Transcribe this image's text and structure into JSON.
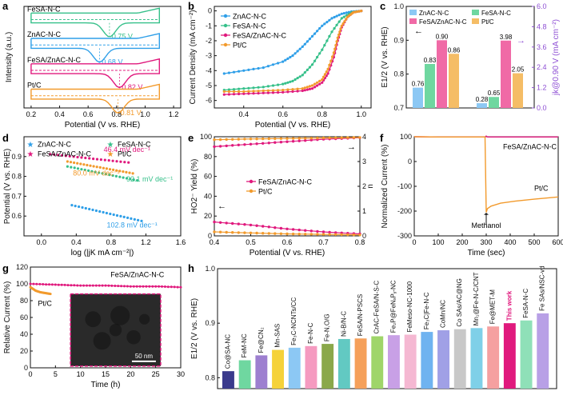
{
  "colors": {
    "fesa": "#36c08a",
    "znac": "#2f9fe8",
    "combo": "#e0197d",
    "ptc": "#f29a2c",
    "purple": "#8e4fd4",
    "axis": "#111111",
    "tem_frame": "#e0197d"
  },
  "chart_data": [
    {
      "id": "a",
      "type": "line",
      "panel_letter": "a",
      "xlabel": "Potential (V vs. RHE)",
      "ylabel": "Intensity (a.u.)",
      "xlim": [
        0.15,
        1.25
      ],
      "xticks": [
        "0.2",
        "0.4",
        "0.6",
        "0.8",
        "1.0",
        "1.2"
      ],
      "xtick_values": [
        0.2,
        0.4,
        0.6,
        0.8,
        1.0,
        1.2
      ],
      "curves": [
        {
          "name": "Fe_SA-N-C",
          "label": "FeSA-N-C",
          "color": "fesa",
          "peak_label": "0.75 V",
          "peak": 0.75,
          "offset": 3
        },
        {
          "name": "Zn_AC-N-C",
          "label": "ZnAC-N-C",
          "color": "znac",
          "peak_label": "0.68 V",
          "peak": 0.68,
          "offset": 2
        },
        {
          "name": "Fe_SA/Zn_AC-N-C",
          "label": "FeSA/ZnAC-N-C",
          "color": "combo",
          "peak_label": "0.82 V",
          "peak": 0.82,
          "offset": 1
        },
        {
          "name": "Pt/C",
          "label": "Pt/C",
          "color": "ptc",
          "peak_label": "0.81 V",
          "peak": 0.81,
          "offset": 0
        }
      ]
    },
    {
      "id": "b",
      "type": "line",
      "panel_letter": "b",
      "xlabel": "Potential (V vs. RHE)",
      "ylabel": "Current Density (mA cm⁻²)",
      "xlim": [
        0.25,
        1.05
      ],
      "ylim": [
        -6.5,
        0.3
      ],
      "xticks": [
        "0.4",
        "0.6",
        "0.8",
        "1.0"
      ],
      "xtick_values": [
        0.4,
        0.6,
        0.8,
        1.0
      ],
      "yticks": [
        "0",
        "-1",
        "-2",
        "-3",
        "-4",
        "-5",
        "-6"
      ],
      "ytick_values": [
        0,
        -1,
        -2,
        -3,
        -4,
        -5,
        -6
      ],
      "legend": [
        "ZnAC-N-C",
        "FeSA-N-C",
        "FeSA/ZnAC-N-C",
        "Pt/C"
      ],
      "series": [
        {
          "name": "ZnAC-N-C",
          "color": "znac",
          "x": [
            0.3,
            0.4,
            0.5,
            0.6,
            0.65,
            0.7,
            0.75,
            0.8,
            0.85,
            0.9,
            0.95,
            1.0
          ],
          "y": [
            -4.2,
            -4.0,
            -3.8,
            -3.4,
            -3.0,
            -2.4,
            -1.7,
            -1.0,
            -0.5,
            -0.2,
            -0.05,
            0
          ]
        },
        {
          "name": "FeSA-N-C",
          "color": "fesa",
          "x": [
            0.3,
            0.4,
            0.5,
            0.6,
            0.65,
            0.7,
            0.75,
            0.8,
            0.85,
            0.9,
            0.95,
            1.0
          ],
          "y": [
            -5.3,
            -5.2,
            -5.1,
            -4.9,
            -4.7,
            -4.3,
            -3.6,
            -2.6,
            -1.4,
            -0.5,
            -0.1,
            0
          ]
        },
        {
          "name": "FeSA/ZnAC-N-C",
          "color": "combo",
          "x": [
            0.3,
            0.4,
            0.5,
            0.6,
            0.7,
            0.75,
            0.8,
            0.83,
            0.86,
            0.88,
            0.9,
            0.93,
            0.96,
            1.0
          ],
          "y": [
            -5.6,
            -5.55,
            -5.5,
            -5.45,
            -5.35,
            -5.2,
            -4.8,
            -4.2,
            -3.1,
            -2.0,
            -1.1,
            -0.4,
            -0.1,
            0
          ]
        },
        {
          "name": "Pt/C",
          "color": "ptc",
          "x": [
            0.3,
            0.4,
            0.5,
            0.6,
            0.7,
            0.75,
            0.8,
            0.83,
            0.86,
            0.88,
            0.9,
            0.93,
            0.96,
            1.0
          ],
          "y": [
            -5.4,
            -5.4,
            -5.35,
            -5.3,
            -5.2,
            -5.0,
            -4.6,
            -3.9,
            -2.8,
            -1.8,
            -1.0,
            -0.4,
            -0.1,
            0
          ]
        }
      ]
    },
    {
      "id": "c",
      "type": "bar",
      "panel_letter": "c",
      "ylabel_left": "E1/2 (V vs. RHE)",
      "ylabel_right": "jk@0.90 V (mA cm⁻²)",
      "ylim_left": [
        0.7,
        1.0
      ],
      "ylim_right": [
        0,
        6
      ],
      "yticks_left": [
        "0.7",
        "0.8",
        "0.9",
        "1.0"
      ],
      "ytick_values_left": [
        0.7,
        0.8,
        0.9,
        1.0
      ],
      "yticks_right": [
        "0.0",
        "1.2",
        "2.4",
        "3.6",
        "4.8",
        "6.0"
      ],
      "ytick_values_right": [
        0,
        1.2,
        2.4,
        3.6,
        4.8,
        6.0
      ],
      "legend": [
        "ZnAC-N-C",
        "FeSA-N-C",
        "FeSA/ZnAC-N-C",
        "Pt/C"
      ],
      "series": [
        {
          "name": "E1/2",
          "axis": "left",
          "values": [
            0.76,
            0.83,
            0.9,
            0.86
          ],
          "labels": [
            "0.76",
            "0.83",
            "0.90",
            "0.86"
          ],
          "colors": [
            "#8cc8f4",
            "#6fd7a0",
            "#f06aa6",
            "#f5bd66"
          ]
        },
        {
          "name": "jk",
          "axis": "right",
          "values": [
            0.28,
            0.65,
            3.98,
            2.05
          ],
          "labels": [
            "0.28",
            "0.65",
            "3.98",
            "2.05"
          ],
          "colors": [
            "#8cc8f4",
            "#6fd7a0",
            "#f06aa6",
            "#f5bd66"
          ]
        }
      ]
    },
    {
      "id": "d",
      "type": "scatter",
      "panel_letter": "d",
      "xlabel": "log (|jK mA cm⁻²|)",
      "ylabel": "Potential (V vs. RHE)",
      "xlim": [
        -0.2,
        1.6
      ],
      "ylim": [
        0.5,
        1.0
      ],
      "xticks": [
        "0.0",
        "0.4",
        "0.8",
        "1.2",
        "1.6"
      ],
      "xtick_values": [
        0.0,
        0.4,
        0.8,
        1.2,
        1.6
      ],
      "yticks": [
        "0.6",
        "0.7",
        "0.8",
        "0.9"
      ],
      "ytick_values": [
        0.6,
        0.7,
        0.8,
        0.9
      ],
      "legend": [
        "ZnAC-N-C",
        "FeSA-N-C",
        "FeSA/ZnAC-N-C",
        "Pt/C"
      ],
      "series": [
        {
          "name": "ZnAC-N-C",
          "color": "znac",
          "x": [
            0.35,
            1.15
          ],
          "y": [
            0.655,
            0.575
          ],
          "slope_label": "102.8 mV dec⁻¹"
        },
        {
          "name": "FeSA-N-C",
          "color": "fesa",
          "x": [
            0.3,
            1.1
          ],
          "y": [
            0.85,
            0.78
          ],
          "slope_label": "92.1 mV dec⁻¹"
        },
        {
          "name": "FeSA/ZnAC-N-C",
          "color": "combo",
          "x": [
            0.1,
            1.0
          ],
          "y": [
            0.912,
            0.87
          ],
          "slope_label": "46.4 mV dec⁻¹"
        },
        {
          "name": "Pt/C",
          "color": "ptc",
          "x": [
            0.3,
            1.05
          ],
          "y": [
            0.875,
            0.815
          ],
          "slope_label": "80.0 mV dec⁻¹"
        }
      ]
    },
    {
      "id": "e",
      "type": "line",
      "panel_letter": "e",
      "xlabel": "Potential (V vs. RHE)",
      "ylabel_left": "HO2⁻ Yield (%)",
      "ylabel_right": "n",
      "xlim": [
        0.4,
        0.8
      ],
      "ylim_left": [
        0,
        100
      ],
      "ylim_right": [
        0,
        4
      ],
      "xticks": [
        "0.4",
        "0.5",
        "0.6",
        "0.7",
        "0.8"
      ],
      "xtick_values": [
        0.4,
        0.5,
        0.6,
        0.7,
        0.8
      ],
      "yticks_left": [
        "0",
        "20",
        "40",
        "60",
        "80",
        "100"
      ],
      "ytick_values_left": [
        0,
        20,
        40,
        60,
        80,
        100
      ],
      "yticks_right": [
        "0",
        "1",
        "2",
        "3",
        "4"
      ],
      "ytick_values_right": [
        0,
        1,
        2,
        3,
        4
      ],
      "legend": [
        "FeSA/ZnAC-N-C",
        "Pt/C"
      ],
      "series": [
        {
          "name": "FeSA/ZnAC-N-C yield",
          "color": "combo",
          "axis": "left",
          "x": [
            0.4,
            0.5,
            0.6,
            0.7,
            0.8
          ],
          "y": [
            14,
            11,
            7,
            4,
            2
          ]
        },
        {
          "name": "Pt/C yield",
          "color": "ptc",
          "axis": "left",
          "x": [
            0.4,
            0.5,
            0.6,
            0.7,
            0.8
          ],
          "y": [
            4,
            3,
            2,
            1.5,
            1
          ]
        },
        {
          "name": "FeSA/ZnAC-N-C n",
          "color": "combo",
          "axis": "right",
          "x": [
            0.4,
            0.5,
            0.6,
            0.7,
            0.8
          ],
          "y": [
            3.6,
            3.7,
            3.8,
            3.9,
            3.96
          ]
        },
        {
          "name": "Pt/C n",
          "color": "ptc",
          "axis": "right",
          "x": [
            0.4,
            0.5,
            0.6,
            0.7,
            0.8
          ],
          "y": [
            3.88,
            3.91,
            3.93,
            3.95,
            3.97
          ]
        }
      ]
    },
    {
      "id": "f",
      "type": "line",
      "panel_letter": "f",
      "xlabel": "Time (sec)",
      "ylabel": "Normalized Current (%)",
      "xlim": [
        0,
        600
      ],
      "ylim": [
        -300,
        100
      ],
      "xticks": [
        "0",
        "100",
        "200",
        "300",
        "400",
        "500",
        "600"
      ],
      "xtick_values": [
        0,
        100,
        200,
        300,
        400,
        500,
        600
      ],
      "yticks": [
        "-300",
        "-200",
        "-100",
        "0",
        "100"
      ],
      "ytick_values": [
        -300,
        -200,
        -100,
        0,
        100
      ],
      "annotation": "Methanol",
      "series": [
        {
          "name": "FeSA/ZnAC-N-C",
          "color": "combo",
          "x": [
            0,
            100,
            200,
            295,
            300,
            305,
            400,
            500,
            600
          ],
          "y": [
            100,
            99,
            99,
            99,
            103,
            99,
            99,
            99,
            99
          ]
        },
        {
          "name": "Pt/C",
          "color": "ptc",
          "x": [
            0,
            100,
            200,
            295,
            300,
            305,
            320,
            360,
            420,
            500,
            600
          ],
          "y": [
            100,
            99,
            99,
            99,
            -205,
            -190,
            -180,
            -168,
            -160,
            -152,
            -143
          ]
        }
      ],
      "labels": [
        "FeSA/ZnAC-N-C",
        "Pt/C"
      ]
    },
    {
      "id": "g",
      "type": "line",
      "panel_letter": "g",
      "xlabel": "Time (h)",
      "ylabel": "Relative Current (%)",
      "xlim": [
        0,
        30
      ],
      "ylim": [
        0,
        120
      ],
      "xticks": [
        "0",
        "5",
        "10",
        "15",
        "20",
        "25",
        "30"
      ],
      "xtick_values": [
        0,
        5,
        10,
        15,
        20,
        25,
        30
      ],
      "yticks": [
        "0",
        "20",
        "40",
        "60",
        "80",
        "100",
        "120"
      ],
      "ytick_values": [
        0,
        20,
        40,
        60,
        80,
        100,
        120
      ],
      "series": [
        {
          "name": "FeSA/ZnAC-N-C",
          "color": "combo",
          "x": [
            0,
            5,
            10,
            15,
            20,
            25,
            30
          ],
          "y": [
            100,
            99,
            98,
            98,
            97,
            97,
            96
          ]
        },
        {
          "name": "Pt/C",
          "color": "ptc",
          "x": [
            0,
            1,
            2,
            3,
            4
          ],
          "y": [
            96,
            92,
            90,
            89,
            88
          ]
        }
      ],
      "labels": [
        "FeSA/ZnAC-N-C",
        "Pt/C"
      ],
      "inset_scale": "50 nm"
    },
    {
      "id": "h",
      "type": "bar",
      "panel_letter": "h",
      "ylabel": "E1/2 (V vs. RHE)",
      "ylim": [
        0.78,
        1.0
      ],
      "yticks": [
        "0.8",
        "0.9",
        "1.0"
      ],
      "ytick_values": [
        0.8,
        0.9,
        1.0
      ],
      "categories": [
        "Co@SA-NC",
        "FeM-NC",
        "Fe@CN₂",
        "Mn-SAS",
        "Fe₃C-NCNTs/CC",
        "Fe-N-C",
        "Fe-N,O/G",
        "Ni-B/N-C",
        "FeSA/N-PSCS",
        "CrAC-FeSA/N-S-C",
        "Fe₂P@FeNₓPᵧ-NC",
        "FeMeso-NC-1000",
        "Fe₃C|Fe-N-C",
        "CoMn/NC",
        "Co SAs/AC@NG",
        "Mn₁@Fe-N-C/CNT",
        "Fe@MET-M",
        "This work",
        "FeSA-N-C",
        "Fe SAs/NSC-vd"
      ],
      "values": [
        0.812,
        0.832,
        0.841,
        0.851,
        0.855,
        0.858,
        0.862,
        0.871,
        0.872,
        0.876,
        0.878,
        0.879,
        0.884,
        0.887,
        0.889,
        0.891,
        0.894,
        0.9,
        0.905,
        0.918
      ],
      "colors": [
        "#3a3a8c",
        "#6fd7a0",
        "#9d7fd0",
        "#f5d23a",
        "#8cc8f4",
        "#f59ac0",
        "#8aa84a",
        "#62c9c2",
        "#f5a05a",
        "#9fd56a",
        "#c8a0e6",
        "#f5b8d2",
        "#6fb3f0",
        "#a0a0e6",
        "#c8c8c8",
        "#7fd0e8",
        "#f5a0a0",
        "#e0197d",
        "#8fe0b8",
        "#b8a0e6"
      ],
      "highlight_index": 17
    }
  ]
}
